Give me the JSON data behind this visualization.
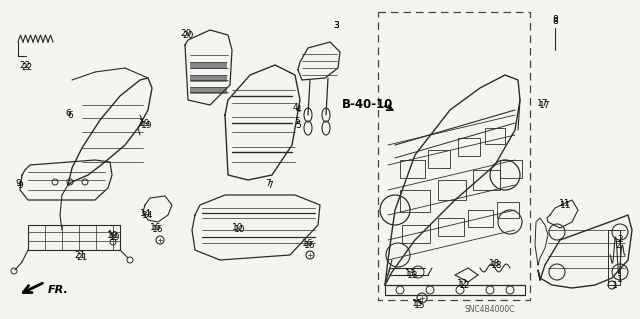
{
  "bg_color": "#f5f5f0",
  "fig_width": 6.4,
  "fig_height": 3.19,
  "dpi": 100,
  "line_color": "#2a2a2a",
  "text_color": "#000000",
  "label_fontsize": 6.5,
  "ref_label": "B-40-10",
  "snc_label": "SNC4B4000C",
  "fr_label": "FR."
}
